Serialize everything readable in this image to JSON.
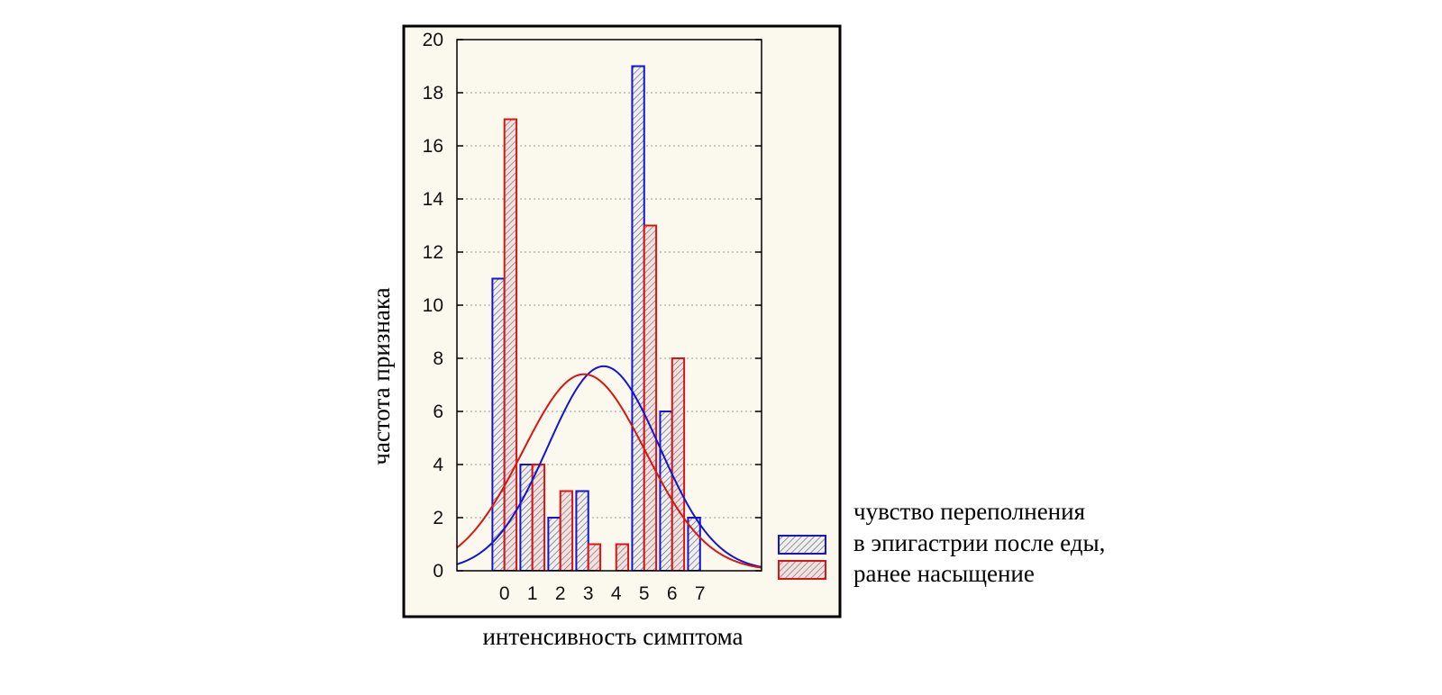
{
  "chart_data": {
    "type": "bar",
    "xlabel": "интенсивность симптома",
    "ylabel": "частота признака",
    "x_ticks": [
      "0",
      "1",
      "2",
      "3",
      "4",
      "5",
      "6",
      "7"
    ],
    "y_ticks": [
      "0",
      "2",
      "4",
      "6",
      "8",
      "10",
      "12",
      "14",
      "16",
      "18",
      "20"
    ],
    "ylim": [
      0,
      20
    ],
    "xlim": [
      -1.7,
      9.2
    ],
    "grid": "horizontal dotted",
    "legend_position": "right",
    "legend_lines": [
      "чувство переполнения",
      "в эпигастрии после еды,",
      "ранее насыщение"
    ],
    "categories": [
      0,
      1,
      2,
      3,
      4,
      5,
      6,
      7
    ],
    "series": [
      {
        "color": "#1414d2",
        "values": [
          11,
          4,
          2,
          3,
          0,
          19,
          6,
          2
        ],
        "normal_fit": {
          "peak": 7.7,
          "mean": 3.55,
          "sd": 2.0
        }
      },
      {
        "color": "#dc1414",
        "values": [
          17,
          4,
          3,
          1,
          1,
          13,
          8,
          0
        ],
        "normal_fit": {
          "peak": 7.4,
          "mean": 2.85,
          "sd": 2.2
        }
      }
    ]
  }
}
